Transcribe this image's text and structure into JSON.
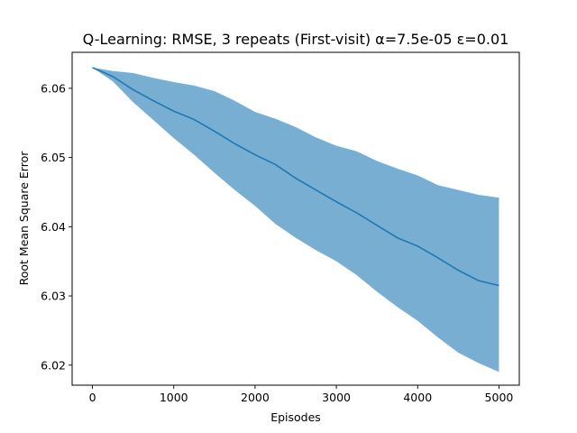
{
  "chart_data": {
    "type": "line",
    "title": "Q-Learning: RMSE, 3 repeats (First-visit) α=7.5e-05 ε=0.01",
    "xlabel": "Episodes",
    "ylabel": "Root Mean Square Error",
    "xlim": [
      -250,
      5250
    ],
    "ylim": [
      6.0171,
      6.0652
    ],
    "xticks": [
      0,
      1000,
      2000,
      3000,
      4000,
      5000
    ],
    "xtick_labels": [
      "0",
      "1000",
      "2000",
      "3000",
      "4000",
      "5000"
    ],
    "yticks": [
      6.02,
      6.03,
      6.04,
      6.05,
      6.06
    ],
    "ytick_labels": [
      "6.02",
      "6.03",
      "6.04",
      "6.05",
      "6.06"
    ],
    "grid": false,
    "legend": "none",
    "colors": {
      "line": "#1f77b4",
      "band": "#79aed3",
      "frame": "#000000"
    },
    "x": [
      0,
      250,
      500,
      750,
      1000,
      1250,
      1500,
      1750,
      2000,
      2250,
      2500,
      2750,
      3000,
      3250,
      3500,
      3750,
      4000,
      4250,
      4500,
      4750,
      5000
    ],
    "series": [
      {
        "role": "mean",
        "values": [
          6.063,
          6.0617,
          6.0598,
          6.0582,
          6.0567,
          6.0555,
          6.0538,
          6.052,
          6.0504,
          6.049,
          6.047,
          6.0453,
          6.0436,
          6.042,
          6.0402,
          6.0384,
          6.0372,
          6.0355,
          6.0337,
          6.0322,
          6.0315
        ]
      },
      {
        "role": "upper",
        "values": [
          6.063,
          6.0625,
          6.0622,
          6.0615,
          6.0609,
          6.0604,
          6.0596,
          6.0582,
          6.0566,
          6.0556,
          6.0544,
          6.0529,
          6.0517,
          6.0509,
          6.0495,
          6.0484,
          6.0474,
          6.046,
          6.0453,
          6.0446,
          6.0442
        ]
      },
      {
        "role": "lower",
        "values": [
          6.063,
          6.061,
          6.058,
          6.0554,
          6.0528,
          6.0504,
          6.0478,
          6.0453,
          6.043,
          6.0404,
          6.0384,
          6.0366,
          6.035,
          6.033,
          6.0306,
          6.0284,
          6.0264,
          6.024,
          6.0218,
          6.0203,
          6.019
        ]
      }
    ]
  }
}
